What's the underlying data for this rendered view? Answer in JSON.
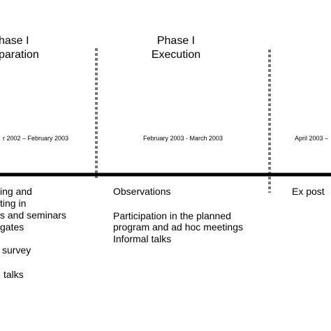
{
  "phases": [
    {
      "title": "hase I",
      "subtitle": "paration",
      "period": "r 2002 – February 2003",
      "items": [
        "ing and",
        "ting in",
        "s and seminars",
        "gates",
        "survey",
        "talks"
      ]
    },
    {
      "title": "Phase I",
      "subtitle": "Execution",
      "period": "February 2003 - March 2003",
      "items": [
        "Observations",
        "Participation in the planned",
        "program and ad hoc meetings",
        "Informal talks"
      ]
    },
    {
      "period": "April 2003 – ",
      "items": [
        "Ex post"
      ]
    }
  ]
}
